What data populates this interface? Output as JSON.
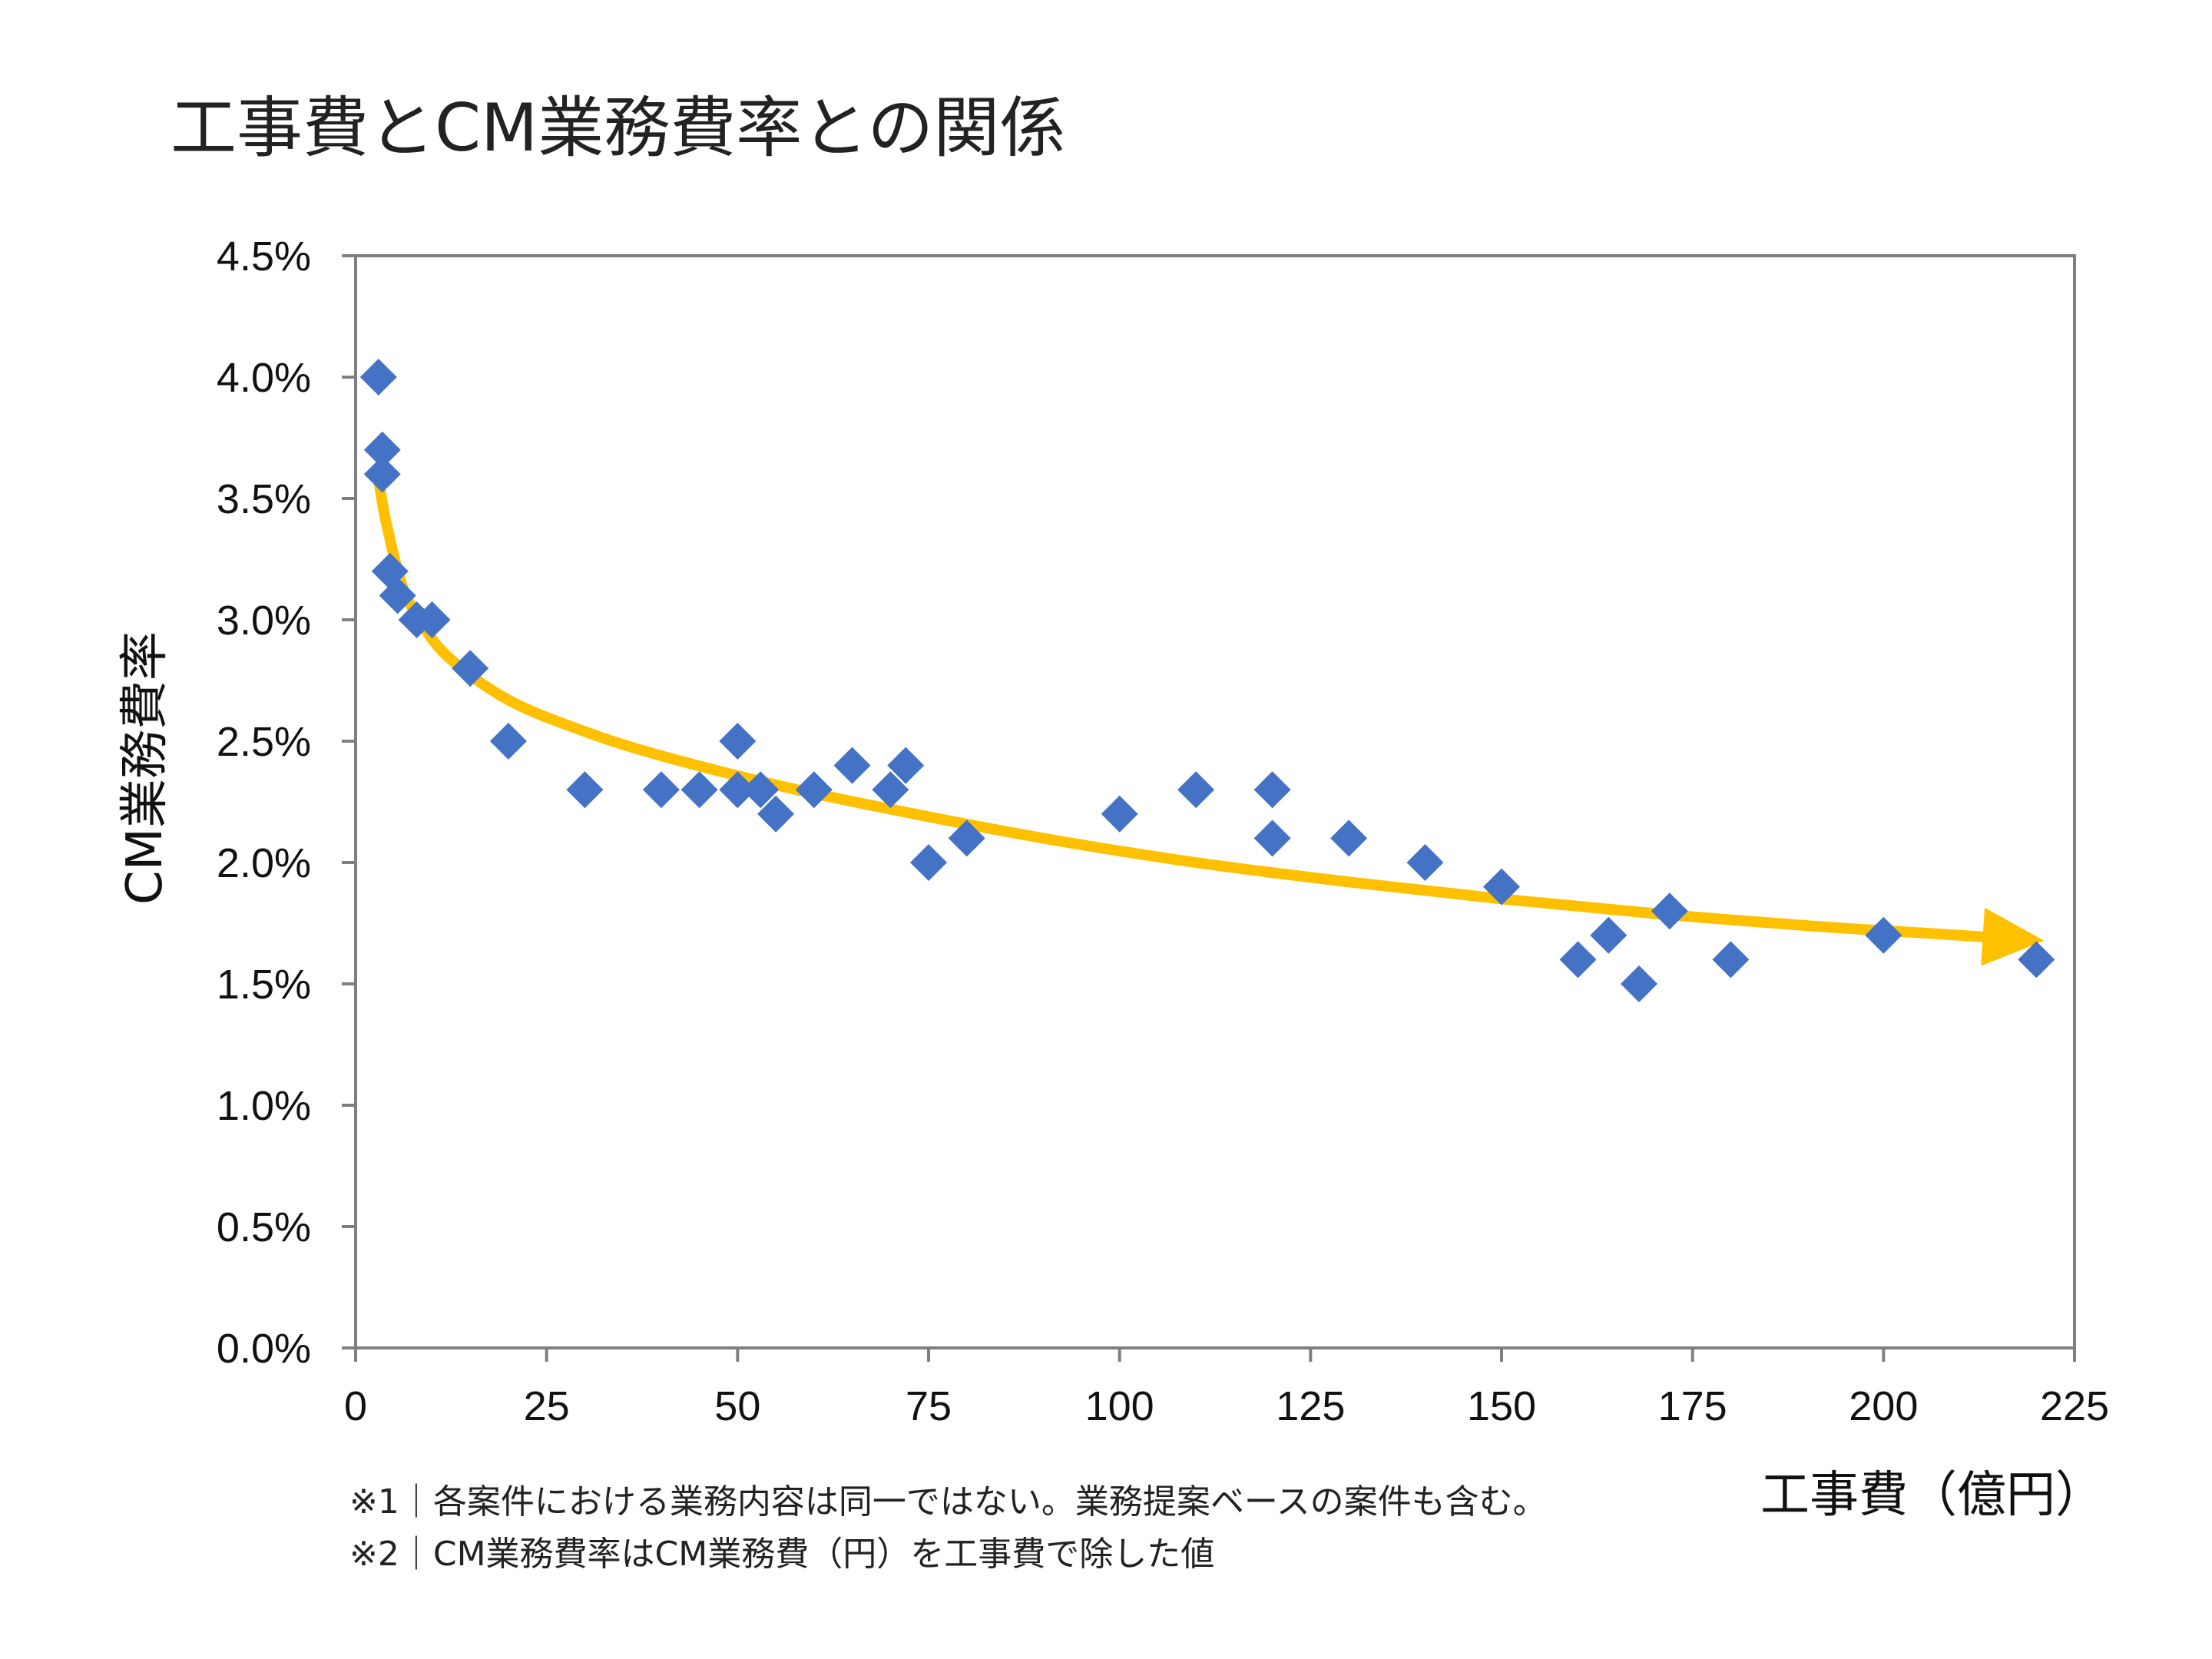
{
  "chart_data": {
    "type": "scatter",
    "title": "工事費とCM業務費率との関係",
    "xlabel": "工事費（億円）",
    "ylabel": "CM業務費率",
    "xlim": [
      0,
      225
    ],
    "ylim": [
      0,
      0.045
    ],
    "x_ticks": [
      0,
      25,
      50,
      75,
      100,
      125,
      150,
      175,
      200,
      225
    ],
    "x_tick_labels": [
      "0",
      "25",
      "50",
      "75",
      "100",
      "125",
      "150",
      "175",
      "200",
      "225"
    ],
    "y_ticks": [
      0,
      0.005,
      0.01,
      0.015,
      0.02,
      0.025,
      0.03,
      0.035,
      0.04,
      0.045
    ],
    "y_tick_labels": [
      "0.0%",
      "0.5%",
      "1.0%",
      "1.5%",
      "2.0%",
      "2.5%",
      "3.0%",
      "3.5%",
      "4.0%",
      "4.5%"
    ],
    "grid": false,
    "series": [
      {
        "name": "CM業務費率",
        "marker": "diamond",
        "color": "#4472C4",
        "points": [
          [
            3,
            0.04
          ],
          [
            3.5,
            0.037
          ],
          [
            3.5,
            0.036
          ],
          [
            4.5,
            0.032
          ],
          [
            5.5,
            0.031
          ],
          [
            8,
            0.03
          ],
          [
            10,
            0.03
          ],
          [
            15,
            0.028
          ],
          [
            20,
            0.025
          ],
          [
            30,
            0.023
          ],
          [
            40,
            0.023
          ],
          [
            45,
            0.023
          ],
          [
            50,
            0.025
          ],
          [
            50,
            0.023
          ],
          [
            53,
            0.023
          ],
          [
            55,
            0.022
          ],
          [
            60,
            0.023
          ],
          [
            65,
            0.024
          ],
          [
            70,
            0.023
          ],
          [
            72,
            0.024
          ],
          [
            75,
            0.02
          ],
          [
            80,
            0.021
          ],
          [
            100,
            0.022
          ],
          [
            110,
            0.023
          ],
          [
            120,
            0.023
          ],
          [
            120,
            0.021
          ],
          [
            130,
            0.021
          ],
          [
            140,
            0.02
          ],
          [
            150,
            0.019
          ],
          [
            160,
            0.016
          ],
          [
            164,
            0.017
          ],
          [
            168,
            0.015
          ],
          [
            172,
            0.018
          ],
          [
            180,
            0.016
          ],
          [
            200,
            0.017
          ],
          [
            220,
            0.016
          ]
        ]
      }
    ],
    "trend": {
      "name": "trend-arrow",
      "color": "#FFC000",
      "points": [
        [
          3,
          0.0358
        ],
        [
          4,
          0.034
        ],
        [
          6,
          0.0315
        ],
        [
          8,
          0.0302
        ],
        [
          12,
          0.0285
        ],
        [
          20,
          0.0267
        ],
        [
          30,
          0.0254
        ],
        [
          40,
          0.0244
        ],
        [
          55,
          0.0232
        ],
        [
          70,
          0.0222
        ],
        [
          90,
          0.021
        ],
        [
          110,
          0.02
        ],
        [
          130,
          0.0192
        ],
        [
          150,
          0.0185
        ],
        [
          170,
          0.0179
        ],
        [
          190,
          0.0174
        ],
        [
          205,
          0.0171
        ],
        [
          215,
          0.0169
        ]
      ]
    },
    "notes": [
      "※1｜各案件における業務内容は同一ではない。業務提案ベースの案件も含む。",
      "※2｜CM業務費率はCM業務費（円）を工事費で除した値"
    ]
  }
}
